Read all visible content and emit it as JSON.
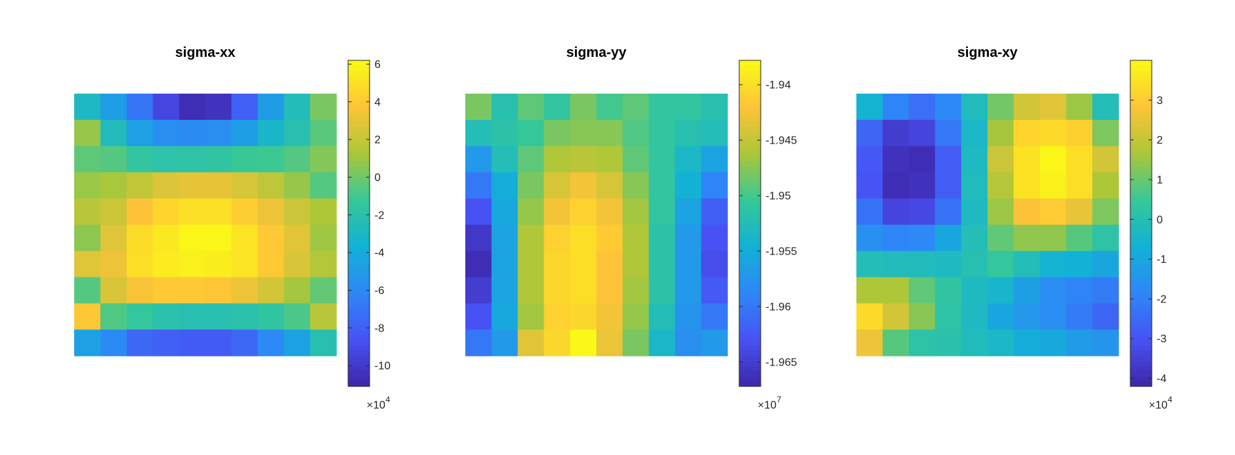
{
  "chart_data": [
    {
      "type": "heatmap",
      "title": "sigma-xx",
      "colormap": "parula",
      "clim": [
        -11.1,
        6.2
      ],
      "colorbar": {
        "ticks": [
          6,
          4,
          2,
          0,
          -2,
          -4,
          -6,
          -8,
          -10
        ],
        "tick_labels": [
          "6",
          "4",
          "2",
          "0",
          "-2",
          "-4",
          "-6",
          "-8",
          "-10"
        ],
        "multiplier_base": "10",
        "multiplier_exp": "4"
      },
      "z": [
        [
          -2.9,
          -4.8,
          -7.0,
          -9.3,
          -10.7,
          -10.4,
          -8.0,
          -4.9,
          -2.5,
          0.2
        ],
        [
          0.8,
          -2.6,
          -4.7,
          -5.7,
          -5.9,
          -5.7,
          -4.8,
          -3.2,
          -2.2,
          -0.5
        ],
        [
          -0.4,
          -0.6,
          -1.5,
          -1.9,
          -1.8,
          -1.6,
          -1.2,
          -1.1,
          -0.6,
          0.4
        ],
        [
          0.9,
          1.2,
          1.9,
          2.7,
          3.0,
          3.0,
          2.5,
          1.8,
          0.8,
          -0.6
        ],
        [
          1.7,
          2.2,
          3.7,
          4.5,
          5.0,
          5.0,
          4.2,
          3.2,
          2.2,
          1.3
        ],
        [
          0.6,
          2.8,
          4.8,
          5.4,
          6.0,
          6.0,
          5.2,
          4.0,
          2.9,
          1.0
        ],
        [
          2.8,
          3.2,
          4.9,
          5.5,
          5.7,
          5.6,
          5.2,
          4.0,
          2.6,
          1.5
        ],
        [
          -0.6,
          2.6,
          3.5,
          4.0,
          4.0,
          3.8,
          3.2,
          2.4,
          1.1,
          -0.3
        ],
        [
          3.9,
          -0.7,
          -1.4,
          -2.0,
          -2.2,
          -2.2,
          -2.0,
          -1.6,
          -0.8,
          1.6
        ],
        [
          -4.7,
          -6.0,
          -7.6,
          -8.0,
          -8.2,
          -8.2,
          -7.6,
          -6.0,
          -4.6,
          -2.2
        ]
      ]
    },
    {
      "type": "heatmap",
      "title": "sigma-yy",
      "colormap": "parula",
      "clim": [
        -1.9672,
        -1.9378
      ],
      "colorbar": {
        "ticks": [
          -1.94,
          -1.945,
          -1.95,
          -1.955,
          -1.96,
          -1.965
        ],
        "tick_labels": [
          "-1.94",
          "-1.945",
          "-1.95",
          "-1.955",
          "-1.96",
          "-1.965"
        ],
        "multiplier_base": "10",
        "multiplier_exp": "7"
      },
      "z": [
        [
          -1.948,
          -1.952,
          -1.949,
          -1.951,
          -1.948,
          -1.95,
          -1.949,
          -1.951,
          -1.951,
          -1.952
        ],
        [
          -1.9525,
          -1.9515,
          -1.9505,
          -1.948,
          -1.9475,
          -1.9475,
          -1.9495,
          -1.951,
          -1.952,
          -1.9525
        ],
        [
          -1.957,
          -1.9525,
          -1.949,
          -1.946,
          -1.9455,
          -1.946,
          -1.949,
          -1.951,
          -1.9535,
          -1.956
        ],
        [
          -1.96,
          -1.955,
          -1.948,
          -1.944,
          -1.9425,
          -1.944,
          -1.9475,
          -1.951,
          -1.9545,
          -1.959
        ],
        [
          -1.963,
          -1.9555,
          -1.947,
          -1.9425,
          -1.941,
          -1.9425,
          -1.9465,
          -1.951,
          -1.956,
          -1.962
        ],
        [
          -1.9655,
          -1.956,
          -1.946,
          -1.941,
          -1.94,
          -1.9415,
          -1.946,
          -1.9515,
          -1.957,
          -1.963
        ],
        [
          -1.9665,
          -1.956,
          -1.946,
          -1.9405,
          -1.94,
          -1.942,
          -1.946,
          -1.9515,
          -1.957,
          -1.9635
        ],
        [
          -1.965,
          -1.956,
          -1.946,
          -1.9405,
          -1.94,
          -1.942,
          -1.9465,
          -1.9515,
          -1.957,
          -1.9625
        ],
        [
          -1.963,
          -1.9555,
          -1.9465,
          -1.941,
          -1.9405,
          -1.9425,
          -1.947,
          -1.9525,
          -1.9575,
          -1.96
        ],
        [
          -1.96,
          -1.957,
          -1.9435,
          -1.9405,
          -1.938,
          -1.943,
          -1.948,
          -1.9535,
          -1.958,
          -1.957
        ]
      ]
    },
    {
      "type": "heatmap",
      "title": "sigma-xy",
      "colormap": "parula",
      "clim": [
        -4.2,
        4.0
      ],
      "colorbar": {
        "ticks": [
          3,
          2,
          1,
          0,
          -1,
          -2,
          -3,
          -4
        ],
        "tick_labels": [
          "3",
          "2",
          "1",
          "0",
          "-1",
          "-2",
          "-3",
          "-4"
        ],
        "multiplier_base": "10",
        "multiplier_exp": "4"
      },
      "z": [
        [
          -0.6,
          -1.9,
          -2.4,
          -1.8,
          -0.2,
          1.1,
          2.2,
          2.4,
          1.5,
          -0.1
        ],
        [
          -2.6,
          -3.6,
          -3.4,
          -2.2,
          -0.4,
          1.6,
          3.2,
          3.3,
          3.1,
          1.2
        ],
        [
          -2.9,
          -3.9,
          -4.0,
          -2.8,
          -0.3,
          2.1,
          3.5,
          3.9,
          3.4,
          2.2
        ],
        [
          -3.0,
          -4.0,
          -3.9,
          -2.8,
          -0.2,
          1.8,
          3.5,
          3.8,
          3.4,
          1.7
        ],
        [
          -2.3,
          -3.4,
          -3.3,
          -2.3,
          -0.3,
          1.5,
          2.8,
          3.0,
          2.5,
          1.2
        ],
        [
          -1.6,
          -1.9,
          -1.8,
          -1.0,
          -0.1,
          0.9,
          1.4,
          1.4,
          0.8,
          0.2
        ],
        [
          -0.1,
          -0.2,
          -0.2,
          -0.3,
          0.0,
          0.4,
          -0.1,
          -0.6,
          -0.7,
          -1.0
        ],
        [
          1.7,
          1.7,
          0.9,
          0.3,
          -0.3,
          -0.5,
          -1.2,
          -1.7,
          -1.9,
          -2.1
        ],
        [
          3.3,
          2.2,
          1.3,
          0.2,
          -0.3,
          -1.0,
          -1.4,
          -1.7,
          -2.1,
          -2.6
        ],
        [
          2.6,
          0.8,
          0.2,
          0.1,
          -0.2,
          -0.4,
          -0.8,
          -0.9,
          -1.3,
          -1.5
        ]
      ]
    }
  ]
}
